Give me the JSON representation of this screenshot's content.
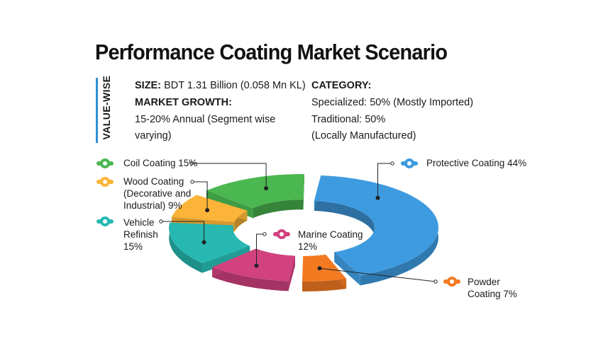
{
  "chart_data": {
    "type": "pie",
    "style": "3d-donut-exploded",
    "title": "Performance Coating Market Scenario",
    "slices": [
      {
        "label": "Protective Coating",
        "value": 44,
        "color": "#3e9be0"
      },
      {
        "label": "Powder Coating",
        "value": 7,
        "color": "#f47a22"
      },
      {
        "label": "Marine Coating",
        "value": 12,
        "color": "#d1427f"
      },
      {
        "label": "Vehicle Refinish",
        "value": 15,
        "color": "#27b8b1"
      },
      {
        "label": "Wood Coating (Decorative and Industrial)",
        "value": 9,
        "color": "#fbb437"
      },
      {
        "label": "Coil Coating",
        "value": 15,
        "color": "#4bb750"
      }
    ]
  },
  "side_label": "VALUE-WISE",
  "info": {
    "size_label": "SIZE:",
    "size_value": " BDT 1.31 Billion (0.058 Mn KL)",
    "growth_label": "MARKET GROWTH:",
    "growth_line1": "15-20% Annual (Segment wise",
    "growth_line2": "varying)",
    "category_label": "CATEGORY:",
    "category_line1": "Specialized: 50% (Mostly Imported)",
    "category_line2": "Traditional: 50%",
    "category_line3": "(Locally Manufactured)"
  },
  "legend": {
    "coil": "Coil Coating 15%",
    "wood_line1": "Wood Coating",
    "wood_line2": "(Decorative and",
    "wood_line3": "Industrial) 9%",
    "vehicle_line1": "Vehicle",
    "vehicle_line2": "Refinish",
    "vehicle_line3": "15%",
    "marine_line1": "Marine Coating",
    "marine_line2": "12%",
    "protective": "Protective Coating 44%",
    "powder_line1": "Powder",
    "powder_line2": "Coating 7%"
  }
}
